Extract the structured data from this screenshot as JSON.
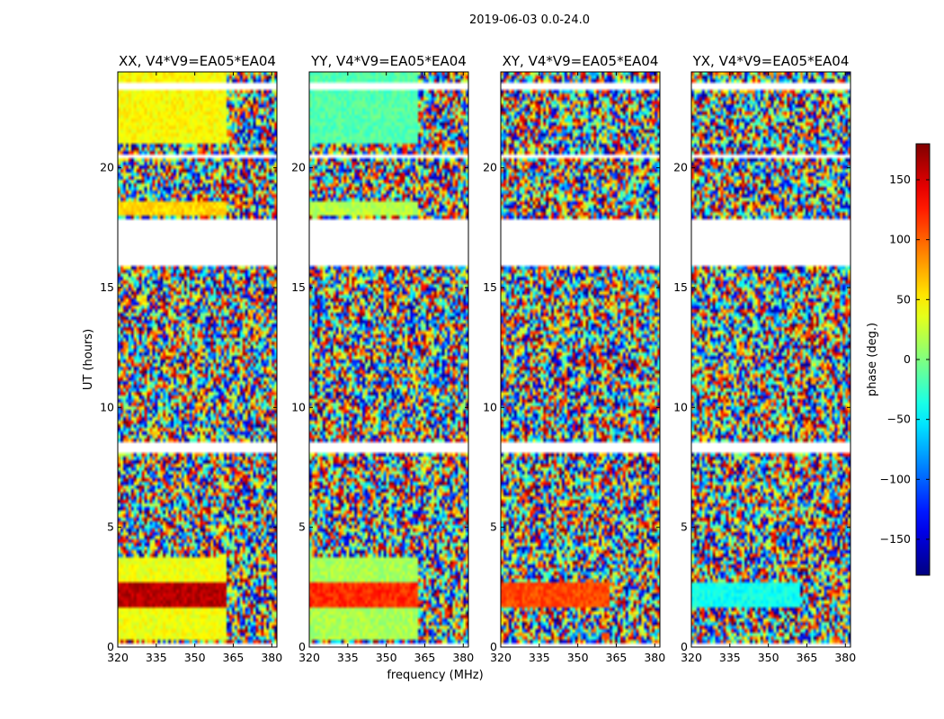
{
  "figure": {
    "suptitle": "2019-06-03 0.0-24.0",
    "xlabel": "frequency (MHz)",
    "ylabel": "UT (hours)",
    "colorbar_label": "phase (deg.)"
  },
  "chart_data": {
    "type": "heatmap",
    "title": "2019-06-03 0.0-24.0",
    "xlabel": "frequency (MHz)",
    "ylabel": "UT (hours)",
    "xlim": [
      320,
      382
    ],
    "ylim": [
      0,
      24
    ],
    "xticks": [
      320,
      335,
      350,
      365,
      380
    ],
    "yticks": [
      0,
      5,
      10,
      15,
      20
    ],
    "colorbar": {
      "label": "phase (deg.)",
      "range": [
        -180,
        180
      ],
      "ticks": [
        150,
        100,
        50,
        0,
        -50,
        -100,
        -150
      ],
      "tick_labels": [
        "150",
        "100",
        "50",
        "0",
        "−50",
        "−100",
        "−150"
      ],
      "colormap": "jet"
    },
    "flagged_time_ranges_hours": [
      [
        0.0,
        0.15
      ],
      [
        8.1,
        8.5
      ],
      [
        15.9,
        17.9
      ],
      [
        20.4,
        20.5
      ],
      [
        23.2,
        23.5
      ]
    ],
    "panels": [
      {
        "title": "XX, V4*V9=EA05*EA04",
        "coherent": [
          {
            "t0": 0.3,
            "t1": 3.8,
            "phase": 40
          },
          {
            "t0": 1.7,
            "t1": 2.7,
            "phase": 160
          },
          {
            "t0": 18.0,
            "t1": 18.6,
            "phase": 60
          },
          {
            "t0": 21.0,
            "t1": 24.0,
            "phase": 45
          }
        ]
      },
      {
        "title": "YY, V4*V9=EA05*EA04",
        "coherent": [
          {
            "t0": 0.3,
            "t1": 3.8,
            "phase": 15
          },
          {
            "t0": 1.7,
            "t1": 2.7,
            "phase": 120
          },
          {
            "t0": 18.0,
            "t1": 18.6,
            "phase": 20
          },
          {
            "t0": 21.0,
            "t1": 24.0,
            "phase": -15
          }
        ]
      },
      {
        "title": "XY, V4*V9=EA05*EA04",
        "coherent": [
          {
            "t0": 1.7,
            "t1": 2.7,
            "phase": 110
          }
        ]
      },
      {
        "title": "YX, V4*V9=EA05*EA04",
        "coherent": [
          {
            "t0": 1.7,
            "t1": 2.7,
            "phase": -40
          }
        ]
      }
    ]
  }
}
